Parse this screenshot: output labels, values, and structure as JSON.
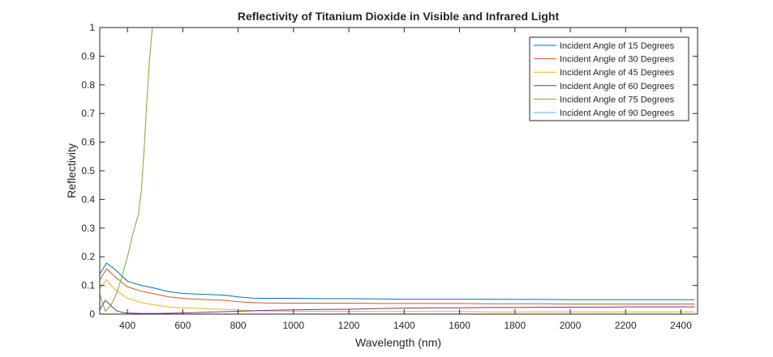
{
  "chart_data": {
    "type": "line",
    "title": "Reflectivity of Titanium Dioxide in Visible and Infrared Light",
    "xlabel": "Wavelength (nm)",
    "ylabel": "Reflectivity",
    "xlim": [
      300,
      2460
    ],
    "ylim": [
      0,
      1
    ],
    "xticks": [
      400,
      600,
      800,
      1000,
      1200,
      1400,
      1600,
      1800,
      2000,
      2200,
      2400
    ],
    "xtick_labels": [
      "400",
      "600",
      "800",
      "1000",
      "1200",
      "1400",
      "1600",
      "1800",
      "2000",
      "2200",
      "2400"
    ],
    "yticks": [
      0,
      0.1,
      0.2,
      0.3,
      0.4,
      0.5,
      0.6,
      0.7,
      0.8,
      0.9,
      1
    ],
    "ytick_labels": [
      "0",
      "0.1",
      "0.2",
      "0.3",
      "0.4",
      "0.5",
      "0.6",
      "0.7",
      "0.8",
      "0.9",
      "1"
    ],
    "grid": false,
    "legend_position": "top-right",
    "series": [
      {
        "name": "Incident Angle of 15 Degrees",
        "color": "#0072BD",
        "x": [
          300,
          325,
          350,
          400,
          450,
          500,
          550,
          600,
          650,
          700,
          750,
          800,
          850,
          900,
          1000,
          1100,
          1200,
          1300,
          1400,
          1500,
          1600,
          1700,
          1800,
          1900,
          2000,
          2100,
          2200,
          2300,
          2400,
          2450
        ],
        "y": [
          0.14,
          0.178,
          0.16,
          0.115,
          0.1,
          0.09,
          0.078,
          0.072,
          0.07,
          0.068,
          0.066,
          0.06,
          0.056,
          0.055,
          0.055,
          0.054,
          0.054,
          0.053,
          0.052,
          0.052,
          0.052,
          0.052,
          0.051,
          0.051,
          0.05,
          0.05,
          0.05,
          0.05,
          0.05,
          0.05
        ]
      },
      {
        "name": "Incident Angle of 30 Degrees",
        "color": "#D95319",
        "x": [
          300,
          325,
          350,
          400,
          450,
          500,
          550,
          600,
          650,
          700,
          750,
          800,
          850,
          900,
          1000,
          1100,
          1200,
          1300,
          1400,
          1500,
          1600,
          1700,
          1800,
          1900,
          2000,
          2100,
          2200,
          2300,
          2400,
          2450
        ],
        "y": [
          0.12,
          0.158,
          0.135,
          0.095,
          0.08,
          0.07,
          0.06,
          0.055,
          0.052,
          0.05,
          0.048,
          0.043,
          0.04,
          0.039,
          0.038,
          0.038,
          0.038,
          0.037,
          0.037,
          0.037,
          0.037,
          0.036,
          0.036,
          0.036,
          0.035,
          0.035,
          0.035,
          0.035,
          0.035,
          0.035
        ]
      },
      {
        "name": "Incident Angle of 45 Degrees",
        "color": "#EDB120",
        "x": [
          300,
          325,
          350,
          400,
          450,
          500,
          550,
          600,
          650,
          700,
          750,
          800,
          850,
          900,
          1000,
          1100,
          1200,
          1300,
          1400,
          1500,
          1600,
          1700,
          1800,
          1900,
          2000,
          2100,
          2200,
          2300,
          2400,
          2450
        ],
        "y": [
          0.09,
          0.12,
          0.09,
          0.055,
          0.04,
          0.032,
          0.025,
          0.022,
          0.02,
          0.018,
          0.017,
          0.014,
          0.012,
          0.011,
          0.01,
          0.01,
          0.01,
          0.009,
          0.009,
          0.009,
          0.009,
          0.008,
          0.008,
          0.008,
          0.008,
          0.008,
          0.008,
          0.008,
          0.008,
          0.008
        ]
      },
      {
        "name": "Incident Angle of 60 Degrees",
        "color": "#7E2F8E",
        "x": [
          300,
          320,
          340,
          360,
          380,
          400,
          420,
          450,
          500,
          600,
          700,
          800,
          900,
          1000,
          1100,
          1200,
          1300,
          1400,
          1500,
          1600,
          1700,
          1800,
          1900,
          2000,
          2100,
          2200,
          2300,
          2400,
          2450
        ],
        "y": [
          0.015,
          0.048,
          0.03,
          0.012,
          0.006,
          0.004,
          0.003,
          0.002,
          0.002,
          0.004,
          0.007,
          0.01,
          0.013,
          0.015,
          0.016,
          0.017,
          0.019,
          0.021,
          0.022,
          0.022,
          0.023,
          0.023,
          0.024,
          0.024,
          0.024,
          0.025,
          0.025,
          0.025,
          0.025
        ]
      },
      {
        "name": "Incident Angle of 75 Degrees",
        "color": "#77AC30",
        "x": [
          300,
          320,
          340,
          360,
          380,
          400,
          420,
          440,
          450,
          460,
          470,
          480,
          490,
          500,
          600,
          800,
          1000,
          1200,
          1400,
          1600,
          1800,
          2000,
          2200,
          2400,
          2450
        ],
        "y": [
          0.07,
          0.01,
          0.03,
          0.07,
          0.13,
          0.2,
          0.28,
          0.35,
          0.43,
          0.57,
          0.74,
          0.89,
          1.0,
          1.0,
          1.0,
          1.0,
          1.0,
          1.0,
          1.0,
          1.0,
          1.0,
          1.0,
          1.0,
          1.0,
          1.0
        ]
      },
      {
        "name": "Incident Angle of 90 Degrees",
        "color": "#4DBEEE",
        "x": [
          300,
          2450
        ],
        "y": [
          1.0,
          1.0
        ]
      }
    ]
  }
}
